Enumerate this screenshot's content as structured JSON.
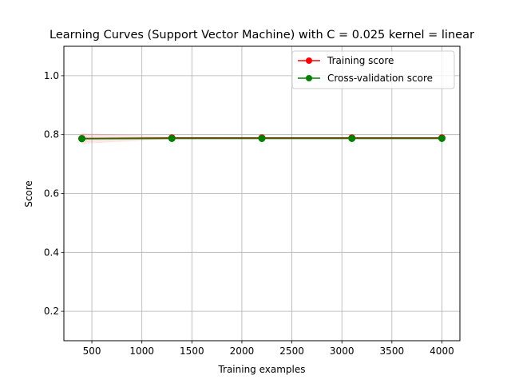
{
  "chart_data": {
    "type": "line",
    "title": "Learning Curves (Support Vector Machine) with C = 0.025 kernel = linear",
    "xlabel": "Training examples",
    "ylabel": "Score",
    "x": [
      400,
      1300,
      2200,
      3100,
      4000
    ],
    "xlim": [
      220,
      4180
    ],
    "ylim": [
      0.1,
      1.1
    ],
    "xticks": [
      500,
      1000,
      1500,
      2000,
      2500,
      3000,
      3500,
      4000
    ],
    "xtick_labels": [
      "500",
      "1000",
      "1500",
      "2000",
      "2500",
      "3000",
      "3500",
      "4000"
    ],
    "yticks": [
      0.2,
      0.4,
      0.6,
      0.8,
      1.0
    ],
    "ytick_labels": [
      "0.2",
      "0.4",
      "0.6",
      "0.8",
      "1.0"
    ],
    "grid": true,
    "legend_position": "top-right",
    "series": [
      {
        "name": "Training score",
        "color": "#ff0000",
        "marker": "circle",
        "values": [
          0.787,
          0.789,
          0.789,
          0.789,
          0.789
        ],
        "band_lower": [
          0.769,
          0.785,
          0.786,
          0.786,
          0.786
        ],
        "band_upper": [
          0.805,
          0.793,
          0.792,
          0.792,
          0.792
        ],
        "band_color": "#ff0000"
      },
      {
        "name": "Cross-validation score",
        "color": "#008000",
        "marker": "circle",
        "values": [
          0.786,
          0.787,
          0.787,
          0.787,
          0.787
        ],
        "band_lower": [
          0.782,
          0.783,
          0.783,
          0.783,
          0.783
        ],
        "band_upper": [
          0.79,
          0.791,
          0.791,
          0.791,
          0.791
        ],
        "band_color": "#008000"
      }
    ]
  }
}
